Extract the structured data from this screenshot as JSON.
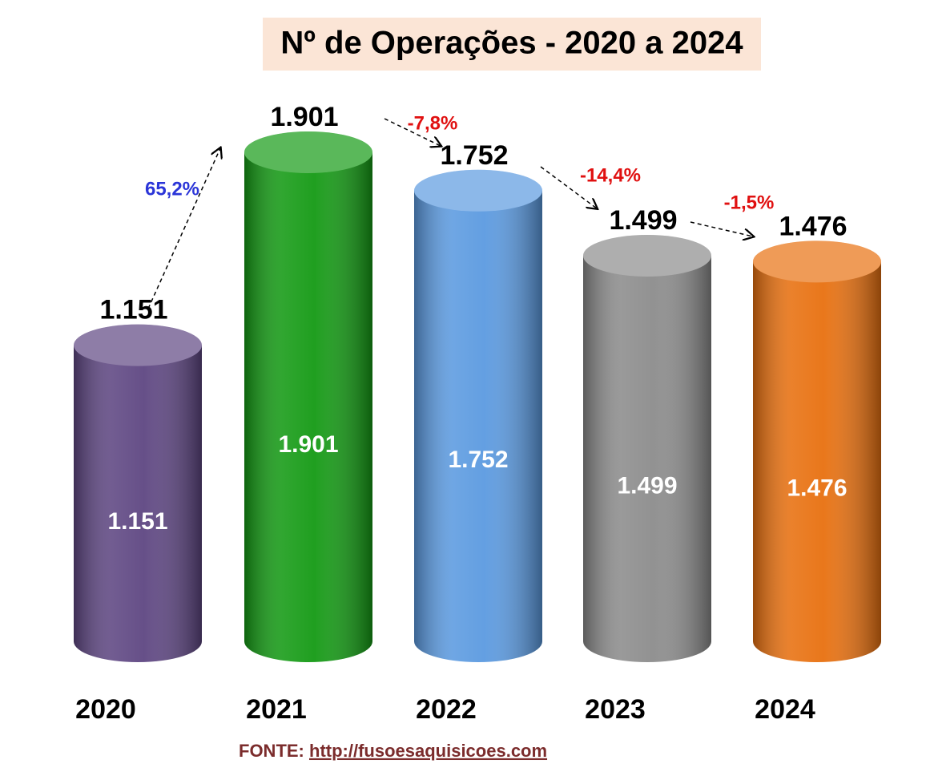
{
  "chart_data": {
    "type": "cylinder_bar",
    "title": "Nº de Operações - 2020 a 2024",
    "categories": [
      "2020",
      "2021",
      "2022",
      "2023",
      "2024"
    ],
    "values": [
      1151,
      1901,
      1752,
      1499,
      1476
    ],
    "value_labels": [
      "1.151",
      "1.901",
      "1.752",
      "1.499",
      "1.476"
    ],
    "colors": [
      "#5e4682",
      "#149a14",
      "#5b9ae0",
      "#8c8c8c",
      "#e8700f"
    ],
    "annotations": [
      "65,2%",
      "-7,8%",
      "-14,4%",
      "-1,5%"
    ],
    "annotation_colors": [
      "#2b35d8",
      "#e01010",
      "#e01010",
      "#e01010"
    ],
    "source_label": "FONTE:",
    "source_link": "http://fusoesaquisicoes.com"
  }
}
